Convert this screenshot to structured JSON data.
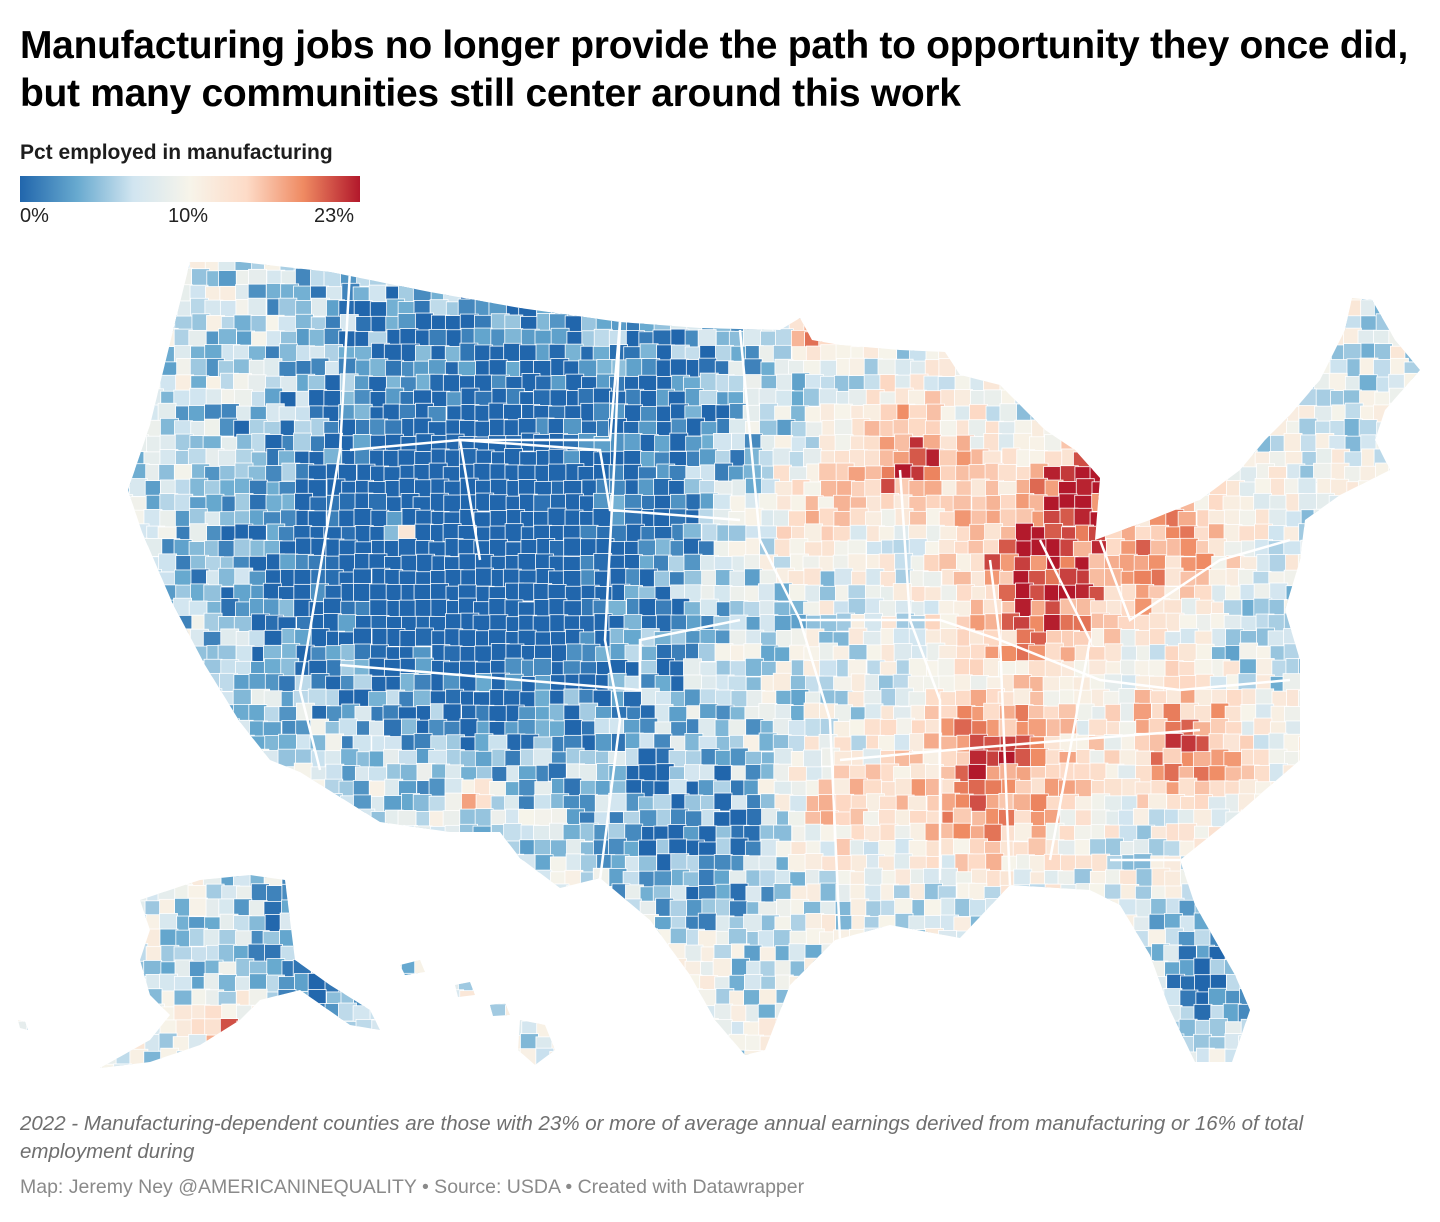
{
  "header": {
    "title": "Manufacturing jobs no longer provide the path to opportunity they once did, but many communities still center around this work"
  },
  "legend": {
    "title": "Pct employed in manufacturing",
    "ticks": [
      "0%",
      "10%",
      "23%"
    ],
    "min": 0,
    "mid": 10,
    "max": 23,
    "colors": [
      "#2166ac",
      "#67a9cf",
      "#d1e5f0",
      "#f7f4ea",
      "#fddbc7",
      "#ef8a62",
      "#b2182b"
    ]
  },
  "map": {
    "type": "choropleth",
    "region": "United States counties",
    "no_data_color": "#d9d9d9",
    "border_color": "#ffffff"
  },
  "footer": {
    "notes": "2022 - Manufacturing-dependent counties are those with 23% or more of average annual earnings derived from manufacturing or 16% of total employment during",
    "credit": "Map: Jeremy Ney @AMERICANINEQUALITY • Source: USDA • Created with Datawrapper"
  }
}
